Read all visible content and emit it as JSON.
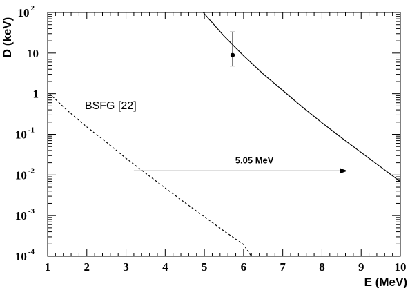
{
  "chart_data": {
    "type": "line",
    "xlabel": "E (MeV)",
    "ylabel": "D (keV)",
    "xlim": [
      1,
      10
    ],
    "ylim": [
      0.0001,
      100
    ],
    "y_scale": "log",
    "grid": false,
    "x_ticks": [
      1,
      2,
      3,
      4,
      5,
      6,
      7,
      8,
      9,
      10
    ],
    "x_tick_labels": [
      "1",
      "2",
      "3",
      "4",
      "5",
      "6",
      "7",
      "8",
      "9",
      "10"
    ],
    "y_ticks": [
      {
        "value": 0.0001,
        "base": "10",
        "exp": "-4"
      },
      {
        "value": 0.001,
        "base": "10",
        "exp": "-3"
      },
      {
        "value": 0.01,
        "base": "10",
        "exp": "-2"
      },
      {
        "value": 0.1,
        "base": "10",
        "exp": "-1"
      },
      {
        "value": 1,
        "base": "1",
        "exp": ""
      },
      {
        "value": 10,
        "base": "10",
        "exp": ""
      },
      {
        "value": 100,
        "base": "10",
        "exp": "2"
      }
    ],
    "series": [
      {
        "name": "",
        "style": "solid",
        "x": [
          4.97,
          5.5,
          6.0,
          6.5,
          7.0,
          7.5,
          8.0,
          8.5,
          9.0,
          9.5,
          10.0
        ],
        "y": [
          100,
          26.3,
          8.6,
          3.06,
          1.2,
          0.469,
          0.193,
          0.0822,
          0.0359,
          0.0157,
          0.00686
        ]
      },
      {
        "name": "BSFG [22]",
        "style": "dashed",
        "x": [
          1.05,
          1.5,
          2.0,
          2.5,
          3.0,
          3.5,
          4.0,
          4.5,
          5.0,
          5.5,
          6.0,
          6.2
        ],
        "y": [
          1.0,
          0.389,
          0.152,
          0.0639,
          0.0257,
          0.0111,
          0.00477,
          0.00209,
          0.000933,
          0.000419,
          0.000194,
          0.0001
        ]
      }
    ],
    "data_point": {
      "x": 5.72,
      "y": 8.9,
      "y_low": 4.8,
      "y_high": 33
    },
    "arrow": {
      "x_start": 3.2,
      "x_end": 8.65,
      "y": 0.0126,
      "label": "5.05 MeV"
    },
    "annotations": [
      {
        "text": "BSFG [22]",
        "x": 1.95,
        "y": 0.42
      }
    ]
  }
}
